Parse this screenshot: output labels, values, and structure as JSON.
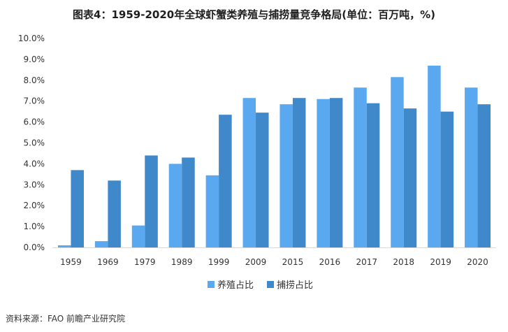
{
  "title": "图表4：1959-2020年全球虾蟹类养殖与捕捞量竞争格局(单位：百万吨，%)",
  "source": "资料来源：FAO 前瞻产业研究院",
  "colors": {
    "aquaculture": "#5aa9f0",
    "capture": "#3f88c9",
    "axis": "#d9d9d9"
  },
  "chart_data": {
    "type": "bar",
    "title": "图表4：1959-2020年全球虾蟹类养殖与捕捞量竞争格局(单位：百万吨，%)",
    "categories": [
      "1959",
      "1969",
      "1979",
      "1989",
      "1999",
      "2009",
      "2015",
      "2016",
      "2017",
      "2018",
      "2019",
      "2020"
    ],
    "series": [
      {
        "name": "养殖占比",
        "values": [
          0.1,
          0.3,
          1.05,
          4.0,
          3.45,
          7.15,
          6.85,
          7.1,
          7.65,
          8.15,
          8.7,
          7.65
        ]
      },
      {
        "name": "捕捞占比",
        "values": [
          3.7,
          3.2,
          4.4,
          4.3,
          6.35,
          6.45,
          7.15,
          7.15,
          6.9,
          6.65,
          6.5,
          6.85
        ]
      }
    ],
    "yticks": [
      "0.0%",
      "1.0%",
      "2.0%",
      "3.0%",
      "4.0%",
      "5.0%",
      "6.0%",
      "7.0%",
      "8.0%",
      "9.0%",
      "10.0%"
    ],
    "ylim": [
      0,
      10
    ],
    "grid": false,
    "legend": "bottom"
  }
}
